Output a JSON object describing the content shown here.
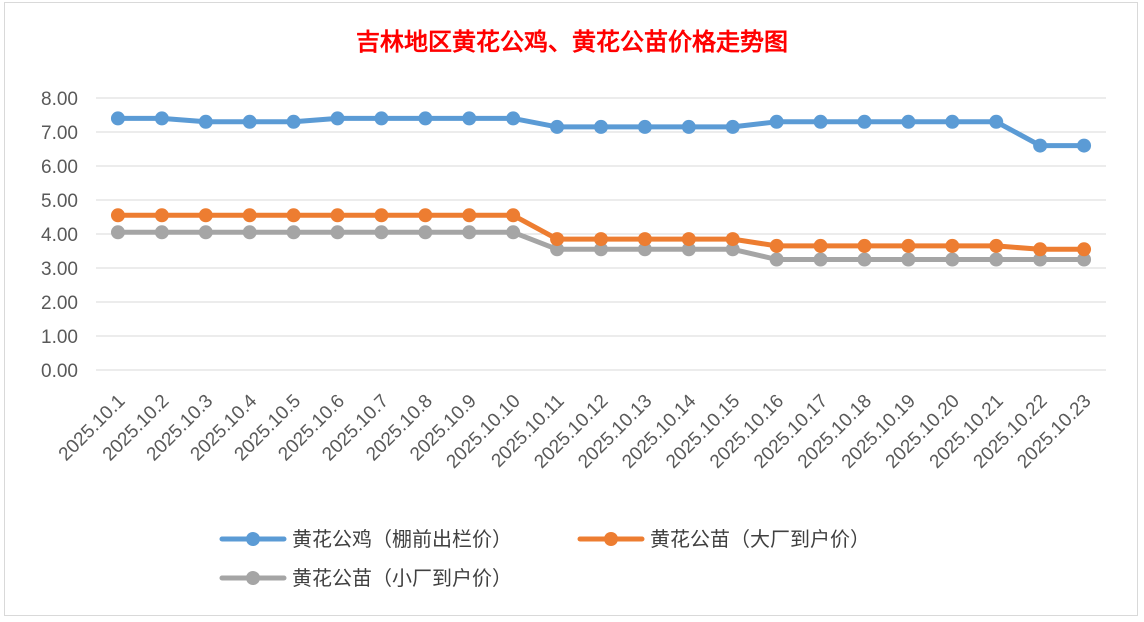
{
  "chart_data": {
    "type": "line",
    "title": "吉林地区黄花公鸡、黄花公苗价格走势图",
    "title_color": "#ff0000",
    "xlabel": "",
    "ylabel": "",
    "ylim": [
      0,
      8
    ],
    "y_ticks": [
      "0.00",
      "1.00",
      "2.00",
      "3.00",
      "4.00",
      "5.00",
      "6.00",
      "7.00",
      "8.00"
    ],
    "grid": true,
    "legend_position": "bottom",
    "categories": [
      "2025.10.1",
      "2025.10.2",
      "2025.10.3",
      "2025.10.4",
      "2025.10.5",
      "2025.10.6",
      "2025.10.7",
      "2025.10.8",
      "2025.10.9",
      "2025.10.10",
      "2025.10.11",
      "2025.10.12",
      "2025.10.13",
      "2025.10.14",
      "2025.10.15",
      "2025.10.16",
      "2025.10.17",
      "2025.10.18",
      "2025.10.19",
      "2025.10.20",
      "2025.10.21",
      "2025.10.22",
      "2025.10.23"
    ],
    "series": [
      {
        "name": "黄花公鸡（棚前出栏价）",
        "color": "#5b9bd5",
        "values": [
          7.4,
          7.4,
          7.3,
          7.3,
          7.3,
          7.4,
          7.4,
          7.4,
          7.4,
          7.4,
          7.15,
          7.15,
          7.15,
          7.15,
          7.15,
          7.3,
          7.3,
          7.3,
          7.3,
          7.3,
          7.3,
          6.6,
          6.6
        ]
      },
      {
        "name": "黄花公苗（大厂到户价）",
        "color": "#ed7d31",
        "values": [
          4.55,
          4.55,
          4.55,
          4.55,
          4.55,
          4.55,
          4.55,
          4.55,
          4.55,
          4.55,
          3.85,
          3.85,
          3.85,
          3.85,
          3.85,
          3.65,
          3.65,
          3.65,
          3.65,
          3.65,
          3.65,
          3.55,
          3.55
        ]
      },
      {
        "name": "黄花公苗（小厂到户价）",
        "color": "#a5a5a5",
        "values": [
          4.05,
          4.05,
          4.05,
          4.05,
          4.05,
          4.05,
          4.05,
          4.05,
          4.05,
          4.05,
          3.55,
          3.55,
          3.55,
          3.55,
          3.55,
          3.25,
          3.25,
          3.25,
          3.25,
          3.25,
          3.25,
          3.25,
          3.25
        ]
      }
    ]
  }
}
